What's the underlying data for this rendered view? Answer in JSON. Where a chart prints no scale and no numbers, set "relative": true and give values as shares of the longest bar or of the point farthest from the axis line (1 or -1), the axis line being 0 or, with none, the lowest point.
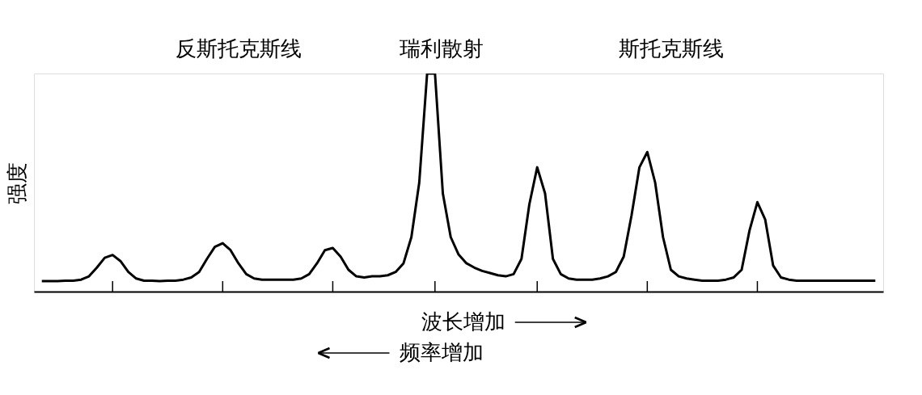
{
  "chart_data": {
    "type": "line",
    "relative": true,
    "ylabel": "强度",
    "tick_labels": false,
    "grid": false,
    "categories": [
      null,
      null,
      null,
      null,
      null,
      null,
      null,
      null,
      null,
      null,
      null,
      null,
      null,
      null,
      null,
      null,
      null,
      null,
      null,
      null,
      null,
      null,
      null,
      null,
      null,
      null,
      null,
      null,
      null,
      null,
      null,
      null,
      null,
      null,
      null,
      null,
      null,
      null,
      null,
      null,
      null,
      null,
      null,
      null,
      null,
      null,
      null,
      null,
      null,
      null,
      null,
      null,
      null,
      null,
      null,
      null,
      null,
      null,
      null,
      null,
      null,
      null,
      null,
      null,
      null,
      null,
      null,
      null,
      null,
      null,
      null,
      null,
      null,
      null,
      null,
      null,
      null,
      null,
      null,
      null,
      null,
      null,
      null,
      null,
      null,
      null,
      null,
      null,
      null,
      null,
      null,
      null,
      null,
      null,
      null,
      null,
      null,
      null,
      null,
      null,
      null,
      null,
      null,
      null,
      null,
      null,
      null
    ],
    "series": [
      {
        "color": "#000000",
        "values": [
          0.048,
          0.048,
          0.048,
          0.05,
          0.05,
          0.055,
          0.07,
          0.11,
          0.155,
          0.168,
          0.14,
          0.09,
          0.06,
          0.05,
          0.05,
          0.048,
          0.05,
          0.05,
          0.055,
          0.065,
          0.09,
          0.15,
          0.205,
          0.222,
          0.19,
          0.13,
          0.08,
          0.06,
          0.055,
          0.055,
          0.055,
          0.055,
          0.055,
          0.06,
          0.08,
          0.13,
          0.19,
          0.2,
          0.16,
          0.1,
          0.07,
          0.065,
          0.07,
          0.07,
          0.075,
          0.09,
          0.13,
          0.25,
          0.5,
          1,
          1,
          0.45,
          0.25,
          0.17,
          0.13,
          0.11,
          0.095,
          0.085,
          0.075,
          0.07,
          0.08,
          0.15,
          0.4,
          0.57,
          0.45,
          0.15,
          0.08,
          0.06,
          0.055,
          0.055,
          0.055,
          0.06,
          0.07,
          0.09,
          0.16,
          0.35,
          0.57,
          0.64,
          0.5,
          0.25,
          0.1,
          0.07,
          0.06,
          0.055,
          0.05,
          0.05,
          0.05,
          0.055,
          0.065,
          0.1,
          0.28,
          0.41,
          0.33,
          0.12,
          0.065,
          0.055,
          0.05,
          0.05,
          0.05,
          0.05,
          0.05,
          0.05,
          0.05,
          0.05,
          0.05,
          0.05,
          0.05
        ]
      }
    ],
    "annotations": [
      "反斯托克斯线",
      "瑞利散射",
      "斯托克斯线",
      "波长增加",
      "频率增加"
    ]
  }
}
